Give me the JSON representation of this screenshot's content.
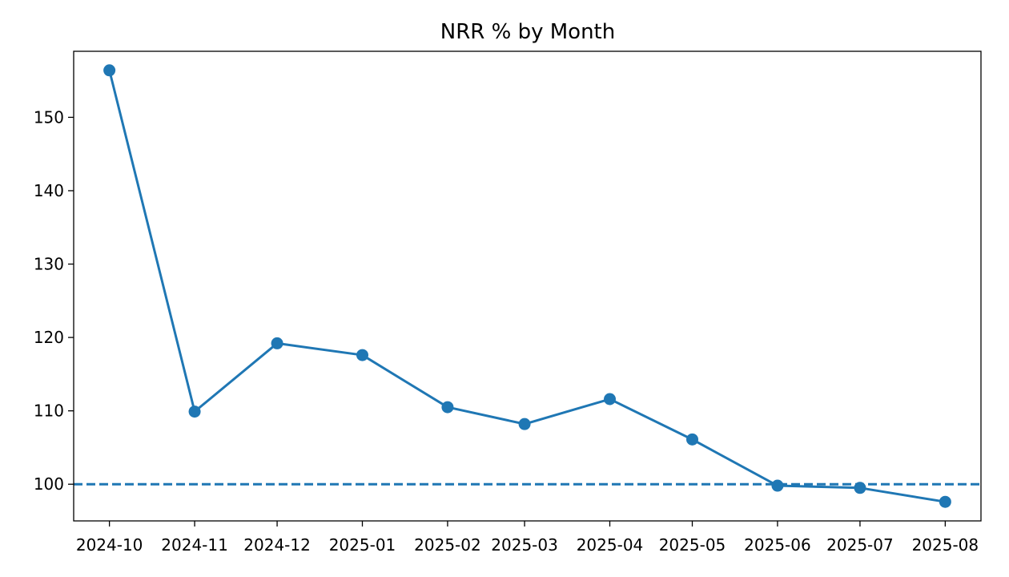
{
  "chart_data": {
    "type": "line",
    "title": "NRR % by Month",
    "xlabel": "",
    "ylabel": "",
    "categories": [
      "2024-10",
      "2024-11",
      "2024-12",
      "2025-01",
      "2025-02",
      "2025-03",
      "2025-04",
      "2025-05",
      "2025-06",
      "2025-07",
      "2025-08"
    ],
    "x": [
      "2024-10-01",
      "2024-11-01",
      "2024-12-01",
      "2025-01-01",
      "2025-02-01",
      "2025-03-01",
      "2025-04-01",
      "2025-05-01",
      "2025-06-01",
      "2025-07-01",
      "2025-08-01"
    ],
    "series": [
      {
        "values": [
          156.4,
          109.9,
          119.2,
          117.6,
          110.5,
          108.2,
          111.6,
          106.1,
          99.8,
          99.5,
          97.6
        ],
        "color": "#1f77b4",
        "marker": "circle"
      }
    ],
    "reference_line": {
      "y": 100,
      "style": "dashed",
      "color": "#1f77b4"
    },
    "ylim": [
      95,
      159
    ],
    "yticks": [
      100,
      110,
      120,
      130,
      140,
      150
    ],
    "xlim": [
      "2024-09-18",
      "2025-08-14"
    ],
    "grid": false,
    "legend": "none"
  }
}
